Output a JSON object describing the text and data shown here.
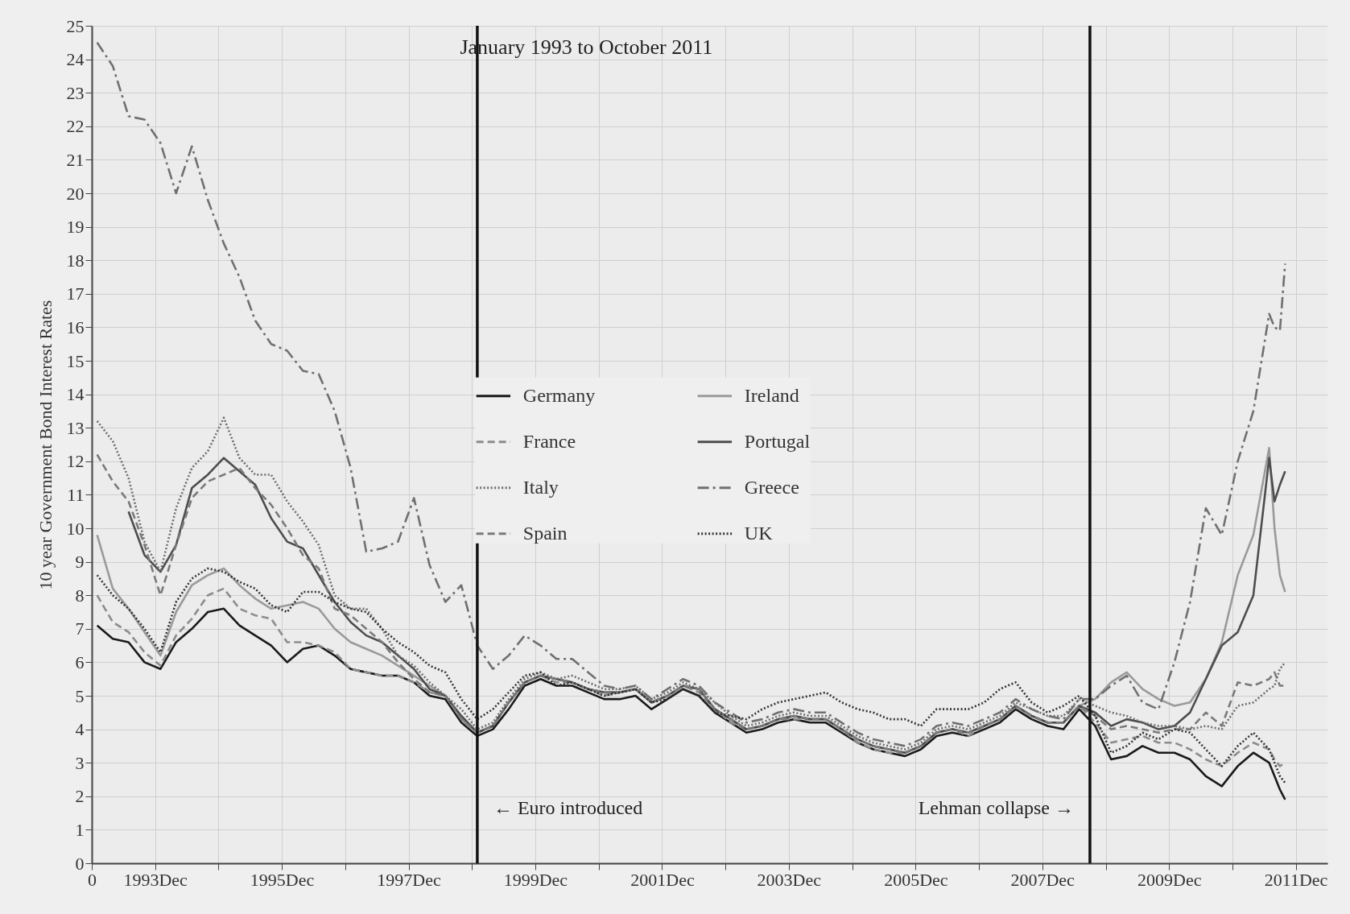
{
  "chart_data": {
    "type": "line",
    "annotations": [
      "January 1993 to October 2011"
    ],
    "ylabel": "10 year Government Bond Interest Rates",
    "x": [
      "1993-01",
      "1993-04",
      "1993-07",
      "1993-10",
      "1994-01",
      "1994-04",
      "1994-07",
      "1994-10",
      "1995-01",
      "1995-04",
      "1995-07",
      "1995-10",
      "1996-01",
      "1996-04",
      "1996-07",
      "1996-10",
      "1997-01",
      "1997-04",
      "1997-07",
      "1997-10",
      "1998-01",
      "1998-04",
      "1998-07",
      "1998-10",
      "1999-01",
      "1999-04",
      "1999-07",
      "1999-10",
      "2000-01",
      "2000-04",
      "2000-07",
      "2000-10",
      "2001-01",
      "2001-04",
      "2001-07",
      "2001-10",
      "2002-01",
      "2002-04",
      "2002-07",
      "2002-10",
      "2003-01",
      "2003-04",
      "2003-07",
      "2003-10",
      "2004-01",
      "2004-04",
      "2004-07",
      "2004-10",
      "2005-01",
      "2005-04",
      "2005-07",
      "2005-10",
      "2006-01",
      "2006-04",
      "2006-07",
      "2006-10",
      "2007-01",
      "2007-04",
      "2007-07",
      "2007-10",
      "2008-01",
      "2008-04",
      "2008-07",
      "2008-10",
      "2009-01",
      "2009-04",
      "2009-07",
      "2009-10",
      "2010-01",
      "2010-04",
      "2010-07",
      "2010-10",
      "2011-01",
      "2011-04",
      "2011-07",
      "2011-08",
      "2011-09",
      "2011-10"
    ],
    "series": [
      {
        "name": "Germany",
        "color": "#1a1a1a",
        "line_style": "solid",
        "values": [
          7.1,
          6.7,
          6.6,
          6.0,
          5.8,
          6.6,
          7.0,
          7.5,
          7.6,
          7.1,
          6.8,
          6.5,
          6.0,
          6.4,
          6.5,
          6.2,
          5.8,
          5.7,
          5.6,
          5.6,
          5.4,
          5.0,
          4.9,
          4.2,
          3.8,
          4.0,
          4.6,
          5.3,
          5.5,
          5.3,
          5.3,
          5.1,
          4.9,
          4.9,
          5.0,
          4.6,
          4.9,
          5.2,
          5.0,
          4.5,
          4.2,
          3.9,
          4.0,
          4.2,
          4.3,
          4.2,
          4.2,
          3.9,
          3.6,
          3.4,
          3.3,
          3.2,
          3.4,
          3.8,
          3.9,
          3.8,
          4.0,
          4.2,
          4.6,
          4.3,
          4.1,
          4.0,
          4.6,
          4.1,
          3.1,
          3.2,
          3.5,
          3.3,
          3.3,
          3.1,
          2.6,
          2.3,
          2.9,
          3.3,
          3.0,
          2.6,
          2.2,
          1.9
        ]
      },
      {
        "name": "Ireland",
        "color": "#9a9a9a",
        "line_style": "solid",
        "values": [
          9.8,
          8.2,
          7.6,
          6.9,
          6.2,
          7.5,
          8.3,
          8.6,
          8.8,
          8.3,
          7.9,
          7.6,
          7.7,
          7.8,
          7.6,
          7.0,
          6.6,
          6.4,
          6.2,
          5.9,
          5.6,
          5.3,
          5.0,
          4.3,
          3.9,
          4.1,
          4.8,
          5.4,
          5.6,
          5.5,
          5.4,
          5.2,
          5.1,
          5.1,
          5.2,
          4.8,
          5.0,
          5.3,
          5.2,
          4.6,
          4.3,
          4.0,
          4.1,
          4.3,
          4.4,
          4.3,
          4.3,
          4.0,
          3.7,
          3.5,
          3.4,
          3.3,
          3.5,
          3.9,
          4.0,
          3.9,
          4.1,
          4.3,
          4.7,
          4.4,
          4.2,
          4.2,
          4.7,
          4.9,
          5.4,
          5.7,
          5.2,
          4.9,
          4.7,
          4.8,
          5.5,
          6.6,
          8.6,
          9.8,
          12.4,
          10.0,
          8.6,
          8.1
        ]
      },
      {
        "name": "France",
        "color": "#8c8c8c",
        "line_style": "dashed",
        "values": [
          8.0,
          7.2,
          6.9,
          6.3,
          5.9,
          6.8,
          7.3,
          8.0,
          8.2,
          7.6,
          7.4,
          7.3,
          6.6,
          6.6,
          6.5,
          6.3,
          5.8,
          5.7,
          5.6,
          5.6,
          5.4,
          5.1,
          5.0,
          4.3,
          3.9,
          4.1,
          4.8,
          5.4,
          5.6,
          5.4,
          5.4,
          5.2,
          5.0,
          5.1,
          5.2,
          4.8,
          5.0,
          5.3,
          5.1,
          4.6,
          4.2,
          4.0,
          4.1,
          4.3,
          4.3,
          4.3,
          4.3,
          4.0,
          3.6,
          3.4,
          3.3,
          3.3,
          3.5,
          3.9,
          4.0,
          3.8,
          4.1,
          4.3,
          4.7,
          4.4,
          4.2,
          4.2,
          4.7,
          4.2,
          3.6,
          3.7,
          3.8,
          3.6,
          3.6,
          3.4,
          3.1,
          2.9,
          3.3,
          3.6,
          3.4,
          3.1,
          2.9,
          3.0
        ]
      },
      {
        "name": "Portugal",
        "color": "#4d4d4d",
        "line_style": "solid",
        "values": [
          null,
          null,
          10.5,
          9.2,
          8.7,
          9.5,
          11.2,
          11.6,
          12.1,
          11.7,
          11.3,
          10.3,
          9.6,
          9.4,
          8.6,
          7.8,
          7.2,
          6.8,
          6.6,
          6.2,
          5.8,
          5.2,
          5.0,
          4.4,
          3.9,
          4.1,
          4.8,
          5.4,
          5.6,
          5.5,
          5.4,
          5.2,
          5.1,
          5.1,
          5.2,
          4.8,
          5.0,
          5.3,
          5.2,
          4.6,
          4.3,
          4.0,
          4.1,
          4.3,
          4.4,
          4.3,
          4.3,
          4.0,
          3.7,
          3.5,
          3.4,
          3.3,
          3.5,
          3.9,
          4.0,
          3.9,
          4.1,
          4.3,
          4.7,
          4.4,
          4.2,
          4.2,
          4.7,
          4.5,
          4.1,
          4.3,
          4.2,
          4.0,
          4.1,
          4.5,
          5.5,
          6.5,
          6.9,
          8.0,
          12.1,
          10.8,
          11.3,
          11.7
        ]
      },
      {
        "name": "Italy",
        "color": "#6e6e6e",
        "line_style": "dotted",
        "values": [
          13.2,
          12.6,
          11.5,
          9.6,
          8.7,
          10.6,
          11.8,
          12.3,
          13.3,
          12.1,
          11.6,
          11.6,
          10.8,
          10.2,
          9.5,
          8.0,
          7.6,
          7.6,
          7.0,
          6.2,
          5.9,
          5.4,
          5.0,
          4.6,
          4.0,
          4.2,
          4.9,
          5.5,
          5.7,
          5.5,
          5.6,
          5.4,
          5.2,
          5.2,
          5.3,
          4.9,
          5.1,
          5.4,
          5.2,
          4.8,
          4.4,
          4.1,
          4.2,
          4.4,
          4.5,
          4.4,
          4.4,
          4.1,
          3.8,
          3.6,
          3.5,
          3.4,
          3.6,
          4.0,
          4.1,
          4.0,
          4.2,
          4.4,
          4.8,
          4.6,
          4.4,
          4.4,
          4.9,
          4.7,
          4.5,
          4.4,
          4.2,
          4.1,
          4.1,
          4.0,
          4.1,
          4.0,
          4.7,
          4.8,
          5.2,
          5.3,
          5.8,
          6.0
        ]
      },
      {
        "name": "Greece",
        "color": "#707070",
        "line_style": "dashdot",
        "values": [
          24.5,
          23.8,
          22.3,
          22.2,
          21.5,
          20.0,
          21.4,
          19.8,
          18.5,
          17.5,
          16.2,
          15.5,
          15.3,
          14.7,
          14.6,
          13.5,
          11.8,
          9.3,
          9.4,
          9.6,
          10.9,
          8.9,
          7.8,
          8.3,
          6.5,
          5.8,
          6.2,
          6.8,
          6.5,
          6.1,
          6.1,
          5.7,
          5.3,
          5.2,
          5.3,
          4.9,
          5.2,
          5.5,
          5.3,
          4.8,
          4.5,
          4.2,
          4.3,
          4.5,
          4.6,
          4.5,
          4.5,
          4.2,
          3.9,
          3.7,
          3.6,
          3.5,
          3.7,
          4.1,
          4.2,
          4.1,
          4.3,
          4.5,
          4.9,
          4.6,
          4.4,
          4.3,
          4.9,
          4.9,
          5.3,
          5.6,
          4.8,
          4.6,
          6.0,
          7.8,
          10.6,
          9.8,
          12.0,
          13.5,
          16.4,
          16.0,
          15.9,
          17.9
        ]
      },
      {
        "name": "Spain",
        "color": "#7a7a7a",
        "line_style": "dashed",
        "values": [
          12.2,
          11.4,
          10.8,
          9.5,
          8.0,
          9.5,
          10.9,
          11.4,
          11.6,
          11.8,
          11.2,
          10.7,
          10.0,
          9.2,
          8.8,
          7.6,
          7.4,
          7.0,
          6.6,
          6.0,
          5.5,
          5.1,
          5.0,
          4.3,
          3.9,
          4.1,
          4.8,
          5.4,
          5.6,
          5.5,
          5.4,
          5.2,
          5.1,
          5.1,
          5.2,
          4.8,
          5.0,
          5.3,
          5.2,
          4.6,
          4.3,
          4.0,
          4.1,
          4.3,
          4.4,
          4.3,
          4.3,
          4.0,
          3.7,
          3.5,
          3.4,
          3.3,
          3.5,
          3.9,
          4.0,
          3.9,
          4.1,
          4.3,
          4.7,
          4.4,
          4.2,
          4.2,
          4.7,
          4.4,
          4.0,
          4.1,
          4.0,
          3.9,
          4.0,
          4.0,
          4.5,
          4.1,
          5.4,
          5.3,
          5.5,
          5.7,
          5.3,
          5.3
        ]
      },
      {
        "name": "UK",
        "color": "#333333",
        "line_style": "dotted",
        "values": [
          8.6,
          8.0,
          7.6,
          7.0,
          6.3,
          7.8,
          8.5,
          8.8,
          8.7,
          8.4,
          8.2,
          7.7,
          7.5,
          8.1,
          8.1,
          7.8,
          7.6,
          7.5,
          7.0,
          6.6,
          6.3,
          5.9,
          5.7,
          4.9,
          4.3,
          4.6,
          5.1,
          5.6,
          5.7,
          5.3,
          5.4,
          5.2,
          5.0,
          5.1,
          5.2,
          4.8,
          4.9,
          5.2,
          5.0,
          4.5,
          4.4,
          4.3,
          4.6,
          4.8,
          4.9,
          5.0,
          5.1,
          4.8,
          4.6,
          4.5,
          4.3,
          4.3,
          4.1,
          4.6,
          4.6,
          4.6,
          4.8,
          5.2,
          5.4,
          4.8,
          4.5,
          4.7,
          5.0,
          4.4,
          3.3,
          3.5,
          3.9,
          3.7,
          4.0,
          3.9,
          3.4,
          2.9,
          3.5,
          3.9,
          3.4,
          3.0,
          2.6,
          2.4
        ]
      }
    ],
    "xlim": [
      "1992-12",
      "2012-06"
    ],
    "xticks": [
      {
        "value": "1992-12",
        "label": "0"
      },
      {
        "value": "1993-12",
        "label": "1993Dec"
      },
      {
        "value": "1994-12",
        "label": null
      },
      {
        "value": "1995-12",
        "label": "1995Dec"
      },
      {
        "value": "1996-12",
        "label": null
      },
      {
        "value": "1997-12",
        "label": "1997Dec"
      },
      {
        "value": "1998-12",
        "label": null
      },
      {
        "value": "1999-12",
        "label": "1999Dec"
      },
      {
        "value": "2000-12",
        "label": null
      },
      {
        "value": "2001-12",
        "label": "2001Dec"
      },
      {
        "value": "2002-12",
        "label": null
      },
      {
        "value": "2003-12",
        "label": "2003Dec"
      },
      {
        "value": "2004-12",
        "label": null
      },
      {
        "value": "2005-12",
        "label": "2005Dec"
      },
      {
        "value": "2006-12",
        "label": null
      },
      {
        "value": "2007-12",
        "label": "2007Dec"
      },
      {
        "value": "2008-12",
        "label": null
      },
      {
        "value": "2009-12",
        "label": "2009Dec"
      },
      {
        "value": "2010-12",
        "label": null
      },
      {
        "value": "2011-12",
        "label": "2011Dec"
      }
    ],
    "ylim": [
      0,
      25
    ],
    "yticks": [
      0,
      1,
      2,
      3,
      4,
      5,
      6,
      7,
      8,
      9,
      10,
      11,
      12,
      13,
      14,
      15,
      16,
      17,
      18,
      19,
      20,
      21,
      22,
      23,
      24,
      25
    ],
    "ref_lines": [
      {
        "axis": "x",
        "value": "1999-01",
        "label": "← Euro introduced",
        "color": "#111111"
      },
      {
        "axis": "x",
        "value": "2008-09",
        "label": "Lehman collapse →",
        "color": "#111111"
      }
    ],
    "grid": true,
    "legend": "center",
    "marker": "none"
  }
}
